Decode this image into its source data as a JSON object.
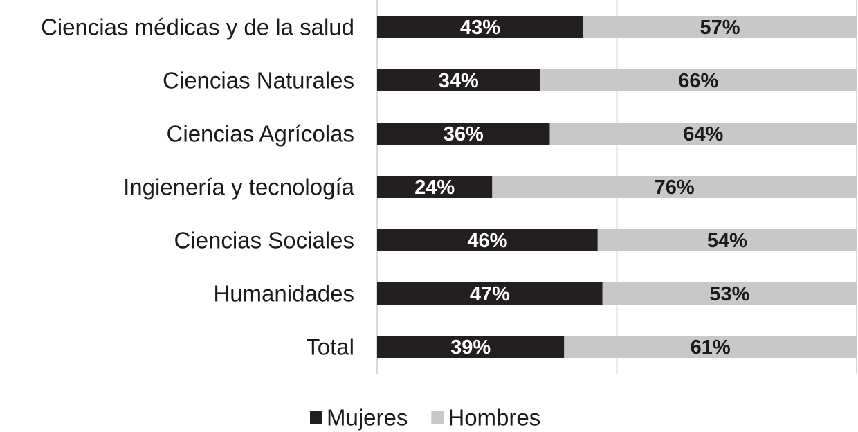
{
  "chart_data": {
    "type": "stacked-bar-horizontal",
    "categories": [
      "Ciencias médicas y de la salud",
      "Ciencias Naturales",
      "Ciencias Agrícolas",
      "Ingienería y tecnología",
      "Ciencias Sociales",
      "Humanidades",
      "Total"
    ],
    "series": [
      {
        "name": "Mujeres",
        "color": "#231f20",
        "label_color": "#ffffff",
        "values": [
          43,
          34,
          36,
          24,
          46,
          47,
          39
        ],
        "value_labels": [
          "43%",
          "34%",
          "36%",
          "24%",
          "46%",
          "47%",
          "39%"
        ]
      },
      {
        "name": "Hombres",
        "color": "#c8c8c8",
        "label_color": "#1a1a1a",
        "values": [
          57,
          66,
          64,
          76,
          54,
          53,
          61
        ],
        "value_labels": [
          "57%",
          "66%",
          "64%",
          "76%",
          "54%",
          "53%",
          "61%"
        ]
      }
    ],
    "xlim": [
      0,
      100
    ],
    "xticks": [
      0,
      50,
      100
    ],
    "grid": true,
    "legend": "bottom"
  }
}
